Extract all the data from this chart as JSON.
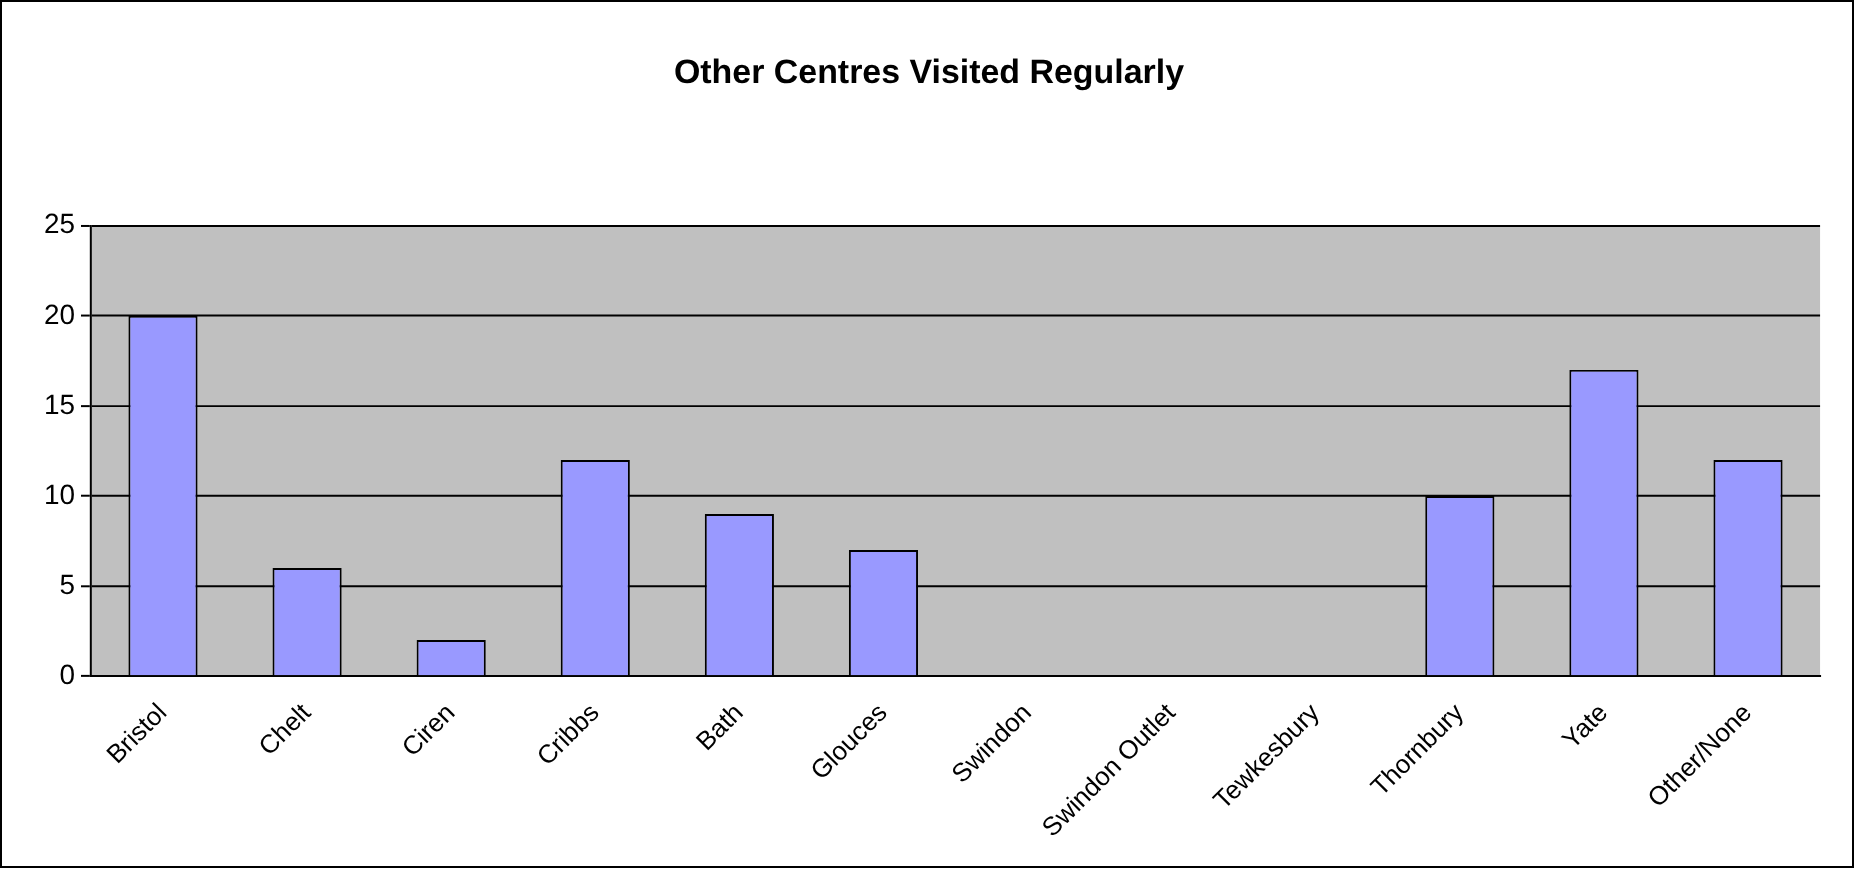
{
  "chart_data": {
    "type": "bar",
    "title": "Other Centres Visited Regularly",
    "categories": [
      "Bristol",
      "Chelt",
      "Ciren",
      "Cribbs",
      "Bath",
      "Glouces",
      "Swindon",
      "Swindon Outlet",
      "Tewkesbury",
      "Thornbury",
      "Yate",
      "Other/None"
    ],
    "values": [
      20,
      6,
      2,
      12,
      9,
      7,
      0,
      0,
      0,
      10,
      17,
      12
    ],
    "color": "#9999ff",
    "ylim": [
      0,
      25
    ],
    "yticks": [
      0,
      5,
      10,
      15,
      20,
      25
    ],
    "grid": "y",
    "legend": false
  }
}
